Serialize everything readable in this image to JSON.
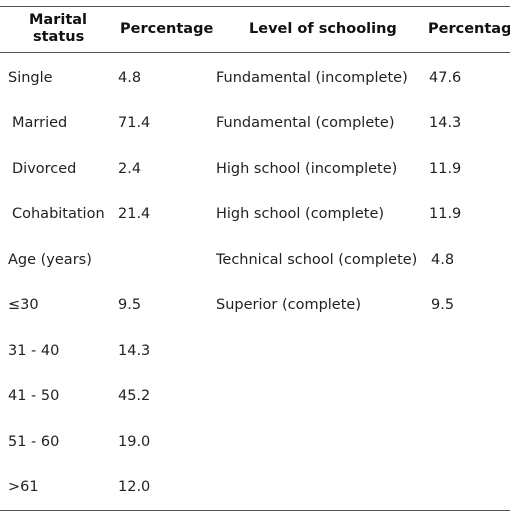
{
  "headers": {
    "marital_line1": "Marital",
    "marital_line2": "status",
    "percentage_left": "Percentage",
    "schooling": "Level of schooling",
    "percentage_right": "Percentage"
  },
  "left_rows": [
    {
      "label": "Single",
      "value": "4.8"
    },
    {
      "label": "Married",
      "value": "71.4"
    },
    {
      "label": "Divorced",
      "value": "2.4"
    },
    {
      "label": "Cohabitation",
      "value": "21.4"
    },
    {
      "label": "Age (years)",
      "value": ""
    },
    {
      "label": "≤30",
      "value": "9.5"
    },
    {
      "label": "31 - 40",
      "value": "14.3"
    },
    {
      "label": "41 - 50",
      "value": "45.2"
    },
    {
      "label": "51 - 60",
      "value": "19.0"
    },
    {
      "label": ">61",
      "value": "12.0"
    }
  ],
  "right_rows": [
    {
      "label": "Fundamental (incomplete)",
      "value": "47.6"
    },
    {
      "label": "Fundamental (complete)",
      "value": "14.3"
    },
    {
      "label": "High school (incomplete)",
      "value": "11.9"
    },
    {
      "label": "High school (complete)",
      "value": "11.9"
    },
    {
      "label": "Technical school (complete)",
      "value": "4.8"
    },
    {
      "label": "Superior (complete)",
      "value": "9.5"
    }
  ]
}
